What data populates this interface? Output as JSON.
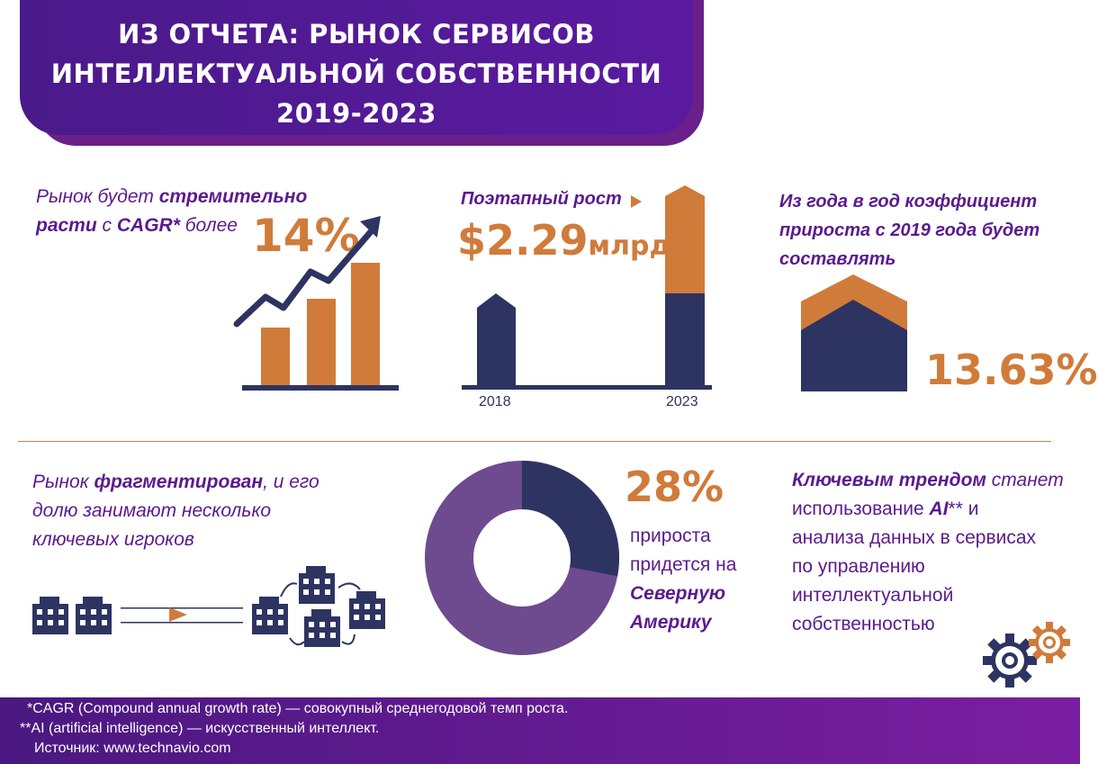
{
  "header": {
    "line1": "ИЗ ОТЧЕТА: РЫНОК СЕРВИСОВ",
    "line2": "ИНТЕЛЛЕКТУАЛЬНОЙ СОБСТВЕННОСТИ",
    "line3": "2019-2023"
  },
  "block_cagr": {
    "t1": "Рынок будет ",
    "t1b": "стремительно",
    "t2b": "расти",
    "t2": " с ",
    "t2c": "CAGR*",
    "t2d": " более",
    "value": "14%"
  },
  "block_growth": {
    "title": "Поэтапный рост",
    "value": "$2.29",
    "unit": "млрд",
    "year_start": "2018",
    "year_end": "2023"
  },
  "block_yoy": {
    "l1": "Из года в год коэффициент",
    "l2": "прироста с 2019 года будет",
    "l3": "составлять",
    "value": "13.63%"
  },
  "block_fragmented": {
    "l1a": "Рынок ",
    "l1b": "фрагментирован",
    "l1c": ", и его",
    "l2": "долю занимают несколько",
    "l3": "ключевых игроков"
  },
  "block_na": {
    "value": "28%",
    "share": 0.28,
    "l1": "прироста",
    "l2": "придется на",
    "l3": "Северную",
    "l4": "Америку"
  },
  "block_ai": {
    "l1a": "Ключевым трендом",
    "l1b": " станет",
    "l2a": "использование ",
    "l2b": "AI",
    "l2c": "** и",
    "l3": "анализа данных в сервисах",
    "l4": "по управлению",
    "l5": "интеллектуальной",
    "l6": "собственностью"
  },
  "footer": {
    "n1": "*CAGR (Compound annual growth rate) — совокупный среднегодовой темп роста.",
    "n2": "**AI (artificial intelligence) — искусственный интеллект.",
    "n3": "Источник: www.technavio.com"
  },
  "colors": {
    "purple": "#5b1a8e",
    "orange": "#d07b3a",
    "navy": "#2d3461",
    "donut_other": "#6e4a8e"
  },
  "icons": [
    "rising-arrow-icon",
    "building-icon",
    "gears-icon"
  ]
}
